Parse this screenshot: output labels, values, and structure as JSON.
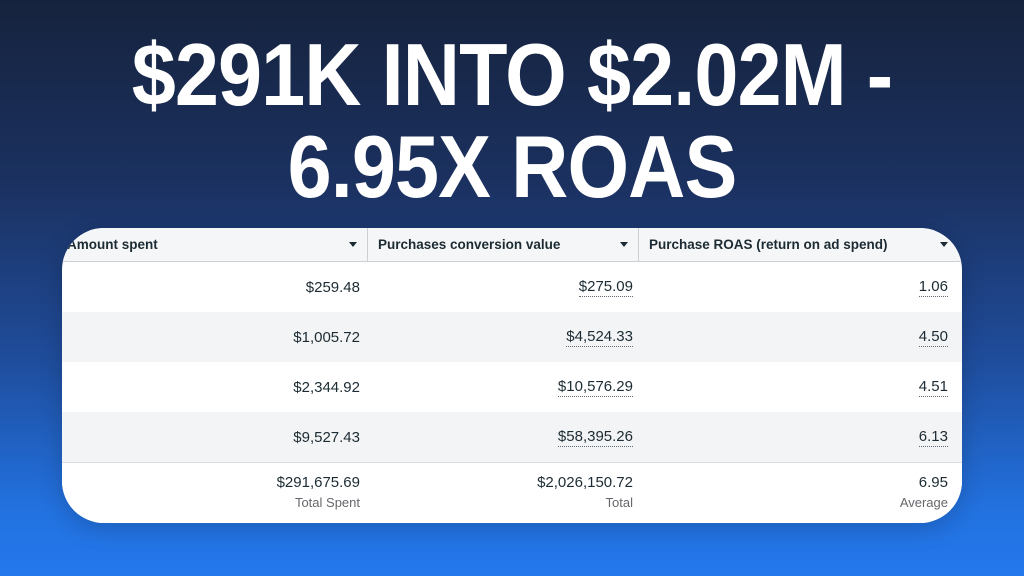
{
  "title": {
    "line1": "$291K INTO $2.02M -",
    "line2": "6.95X ROAS"
  },
  "table": {
    "columns": [
      {
        "label": "Amount spent"
      },
      {
        "label": "Purchases conversion value"
      },
      {
        "label": "Purchase ROAS (return on ad spend)"
      }
    ],
    "rows": [
      [
        "$259.48",
        "$275.09",
        "1.06"
      ],
      [
        "$1,005.72",
        "$4,524.33",
        "4.50"
      ],
      [
        "$2,344.92",
        "$10,576.29",
        "4.51"
      ],
      [
        "$9,527.43",
        "$58,395.26",
        "6.13"
      ]
    ],
    "footer": [
      {
        "value": "$291,675.69",
        "label": "Total Spent"
      },
      {
        "value": "$2,026,150.72",
        "label": "Total"
      },
      {
        "value": "6.95",
        "label": "Average"
      }
    ]
  },
  "icons": {
    "column_sort": "caret-down-icon"
  },
  "colors": {
    "background_top": "#16233e",
    "background_bottom": "#2478ec",
    "card_background": "#ffffff",
    "row_alternate": "#f3f4f5",
    "header_background": "#f5f6f7",
    "divider": "#ccd0d5",
    "text": "#1c2b33",
    "muted_label": "#65676b",
    "headline_text": "#ffffff"
  }
}
